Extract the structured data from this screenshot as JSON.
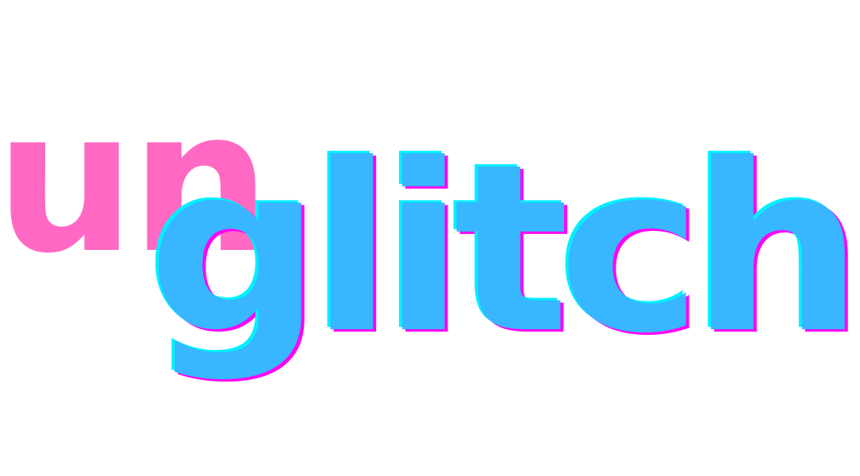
{
  "logo": {
    "prefix": "un",
    "word": "glitch"
  },
  "colors": {
    "prefix": "#ff69c4",
    "word": "#38b6ff",
    "glitch_cyan": "#00f0ff",
    "glitch_magenta": "#ff00f5",
    "background": "#ffffff"
  }
}
